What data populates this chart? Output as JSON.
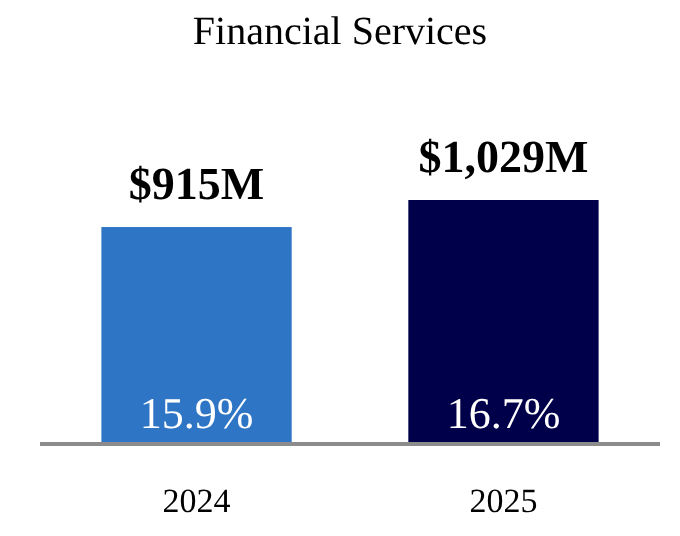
{
  "chart_data": {
    "type": "bar",
    "title": "Financial Services",
    "categories": [
      "2024",
      "2025"
    ],
    "values": [
      915,
      1029
    ],
    "colors": [
      "#2f75c5",
      "#00004a"
    ],
    "value_labels": [
      "$915M",
      "$1,029M"
    ],
    "annotations": [
      "15.9%",
      "16.7%"
    ]
  }
}
